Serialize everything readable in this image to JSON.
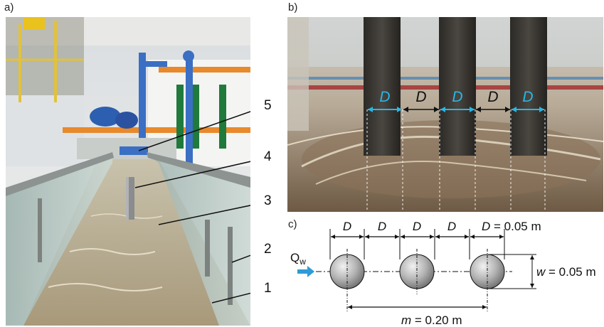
{
  "panels": {
    "a": "a)",
    "b": "b)",
    "c": "c)"
  },
  "photo_a": {
    "callouts": [
      "5",
      "4",
      "3",
      "2",
      "1"
    ]
  },
  "photo_b": {
    "spacing_labels": [
      "D",
      "D",
      "D",
      "D",
      "D"
    ],
    "colors": {
      "pile_label": "#29b6e6",
      "gap_label": "#111111"
    }
  },
  "diagram_c": {
    "d_labels": [
      "D",
      "D",
      "D",
      "D"
    ],
    "d_last_symbol": "D",
    "d_last_value": " = 0.05 m",
    "flow_symbol": "Q",
    "flow_subscript": "w",
    "w_symbol": "w",
    "w_value": " = 0.05 m",
    "m_symbol": "m",
    "m_value": " = 0.20 m",
    "colors": {
      "flow_arrow": "#2e9bd6",
      "pile_fill": "#9a9a9a"
    }
  }
}
